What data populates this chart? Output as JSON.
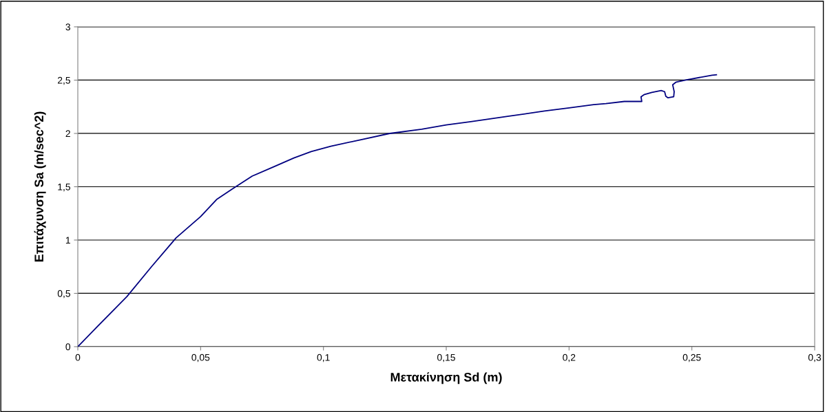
{
  "chart_data": {
    "type": "line",
    "xlabel": "Μετακίνηση Sd (m)",
    "ylabel": "Επιτάχυνση Sa (m/sec^2)",
    "xlim": [
      0,
      0.3
    ],
    "ylim": [
      0,
      3
    ],
    "xticks": [
      0,
      {
        "value": 0.05,
        "label": "0,05"
      },
      {
        "value": 0.1,
        "label": "0,1"
      },
      {
        "value": 0.15,
        "label": "0,15"
      },
      {
        "value": 0.2,
        "label": "0,2"
      },
      {
        "value": 0.25,
        "label": "0,25"
      },
      {
        "value": 0.3,
        "label": "0,3"
      }
    ],
    "yticks": [
      0,
      {
        "value": 0.5,
        "label": "0,5"
      },
      1,
      {
        "value": 1.5,
        "label": "1,5"
      },
      2,
      {
        "value": 2.5,
        "label": "2,5"
      },
      3
    ],
    "grid": "y",
    "marker": "none",
    "line_style": "solid",
    "series": [
      {
        "color": "#000080",
        "x": [
          0,
          0.008,
          0.02,
          0.03,
          0.04,
          0.05,
          0.0565,
          0.063,
          0.071,
          0.08,
          0.088,
          0.095,
          0.103,
          0.115,
          0.127,
          0.14,
          0.15,
          0.16,
          0.175,
          0.19,
          0.2,
          0.21,
          0.215,
          0.2225,
          0.2296,
          0.2293,
          0.2305,
          0.2337,
          0.2375,
          0.2389,
          0.2394,
          0.2403,
          0.2426,
          0.2428,
          0.2422,
          0.2436,
          0.2478,
          0.2582,
          0.26
        ],
        "values": [
          0,
          0.19,
          0.47,
          0.75,
          1.02,
          1.22,
          1.38,
          1.48,
          1.6,
          1.69,
          1.77,
          1.83,
          1.88,
          1.94,
          2.0,
          2.04,
          2.08,
          2.11,
          2.16,
          2.21,
          2.24,
          2.27,
          2.28,
          2.3,
          2.3,
          2.344,
          2.363,
          2.385,
          2.402,
          2.392,
          2.348,
          2.334,
          2.344,
          2.392,
          2.456,
          2.482,
          2.503,
          2.546,
          2.55
        ]
      }
    ]
  }
}
